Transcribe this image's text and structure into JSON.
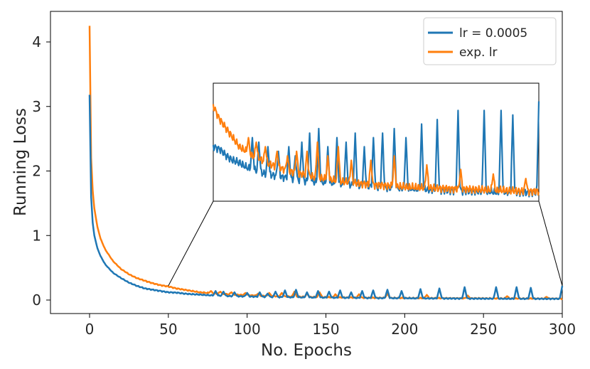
{
  "chart_data": {
    "type": "line",
    "title": "",
    "xlabel": "No. Epochs",
    "ylabel": "Running Loss",
    "xlim": [
      -25,
      300
    ],
    "ylim": [
      -0.2,
      4.4
    ],
    "xticks": [
      0,
      50,
      100,
      150,
      200,
      250,
      300
    ],
    "yticks": [
      0,
      1,
      2,
      3,
      4
    ],
    "grid": false,
    "legend_position": "top-right",
    "colors": {
      "lr": "#1f77b4",
      "exp": "#ff7f0e",
      "axis": "#000000",
      "text": "#262626"
    },
    "series": [
      {
        "name": "lr = 0.0005",
        "color": "#1f77b4",
        "x": [
          0,
          1,
          2,
          3,
          5,
          7,
          10,
          15,
          20,
          25,
          30,
          35,
          40,
          45,
          50,
          55,
          60,
          65,
          70,
          75,
          80,
          85,
          90,
          95,
          100,
          110,
          120,
          130,
          140,
          150,
          160,
          170,
          180,
          190,
          200,
          210,
          220,
          230,
          240,
          250,
          260,
          270,
          280,
          290,
          300
        ],
        "values": [
          3.18,
          1.6,
          1.2,
          1.0,
          0.8,
          0.68,
          0.55,
          0.42,
          0.34,
          0.27,
          0.22,
          0.18,
          0.16,
          0.14,
          0.12,
          0.115,
          0.1,
          0.09,
          0.085,
          0.075,
          0.07,
          0.065,
          0.06,
          0.058,
          0.055,
          0.05,
          0.045,
          0.042,
          0.04,
          0.038,
          0.035,
          0.033,
          0.03,
          0.029,
          0.028,
          0.026,
          0.025,
          0.024,
          0.023,
          0.022,
          0.021,
          0.02,
          0.02,
          0.019,
          0.02
        ],
        "spikes": [
          [
            80,
            0.14
          ],
          [
            85,
            0.13
          ],
          [
            92,
            0.12
          ],
          [
            100,
            0.11
          ],
          [
            108,
            0.12
          ],
          [
            113,
            0.1
          ],
          [
            118,
            0.13
          ],
          [
            124,
            0.15
          ],
          [
            131,
            0.16
          ],
          [
            138,
            0.12
          ],
          [
            145,
            0.14
          ],
          [
            152,
            0.13
          ],
          [
            159,
            0.15
          ],
          [
            166,
            0.12
          ],
          [
            173,
            0.14
          ],
          [
            180,
            0.15
          ],
          [
            189,
            0.16
          ],
          [
            198,
            0.14
          ],
          [
            210,
            0.17
          ],
          [
            222,
            0.18
          ],
          [
            238,
            0.2
          ],
          [
            258,
            0.2
          ],
          [
            271,
            0.2
          ],
          [
            280,
            0.19
          ],
          [
            300,
            0.22
          ]
        ]
      },
      {
        "name": "exp. lr",
        "color": "#ff7f0e",
        "x": [
          0,
          1,
          2,
          3,
          5,
          7,
          10,
          15,
          20,
          25,
          30,
          35,
          40,
          45,
          50,
          55,
          60,
          65,
          70,
          75,
          80,
          85,
          90,
          95,
          100,
          110,
          120,
          130,
          140,
          150,
          160,
          170,
          180,
          190,
          200,
          210,
          220,
          230,
          240,
          250,
          260,
          270,
          280,
          290,
          300
        ],
        "values": [
          4.25,
          2.2,
          1.7,
          1.42,
          1.13,
          0.95,
          0.78,
          0.6,
          0.48,
          0.4,
          0.34,
          0.3,
          0.26,
          0.23,
          0.21,
          0.18,
          0.16,
          0.14,
          0.12,
          0.11,
          0.1,
          0.095,
          0.085,
          0.08,
          0.075,
          0.065,
          0.058,
          0.052,
          0.047,
          0.043,
          0.04,
          0.037,
          0.035,
          0.033,
          0.031,
          0.03,
          0.029,
          0.028,
          0.027,
          0.026,
          0.025,
          0.024,
          0.023,
          0.022,
          0.022
        ],
        "spikes": [
          [
            77,
            0.14
          ],
          [
            83,
            0.13
          ],
          [
            90,
            0.12
          ],
          [
            99,
            0.11
          ],
          [
            107,
            0.1
          ],
          [
            114,
            0.11
          ],
          [
            122,
            0.11
          ],
          [
            130,
            0.13
          ],
          [
            138,
            0.1
          ],
          [
            146,
            0.12
          ],
          [
            156,
            0.09
          ],
          [
            171,
            0.09
          ],
          [
            189,
            0.1
          ],
          [
            214,
            0.08
          ],
          [
            240,
            0.07
          ],
          [
            265,
            0.06
          ],
          [
            290,
            0.05
          ]
        ]
      }
    ],
    "inset": {
      "x_range": [
        50,
        300
      ],
      "connectors": [
        "bottom-left",
        "bottom-right"
      ]
    }
  }
}
